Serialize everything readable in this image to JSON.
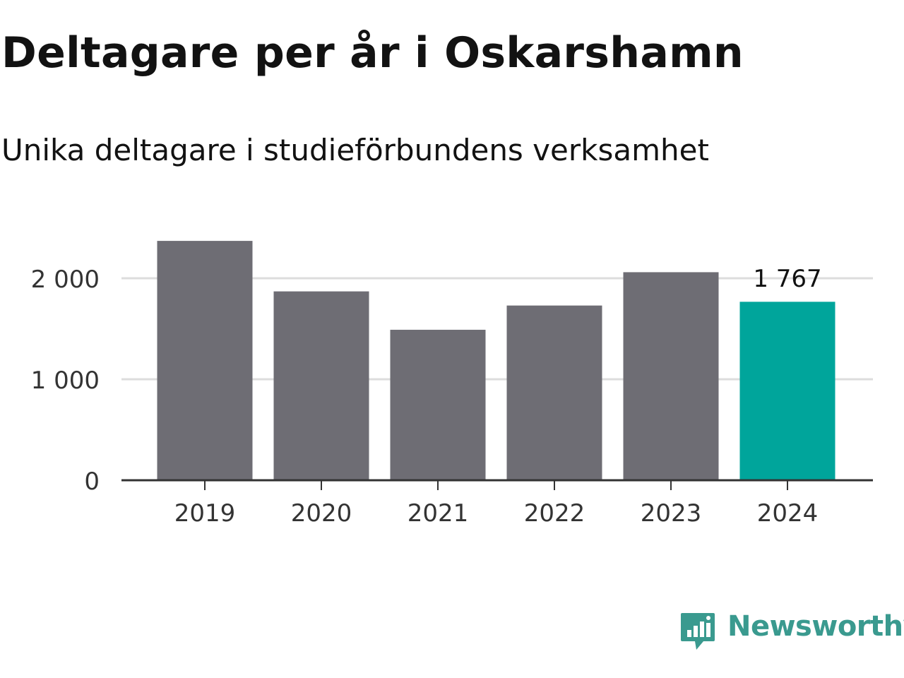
{
  "title": "Deltagare per år i Oskarshamn",
  "subtitle": "Unika deltagare i studieförbundens verksamhet",
  "brand": {
    "name": "Newsworthy",
    "icon": "newsworthy-logo-icon",
    "color": "#3a9a8f"
  },
  "chart_data": {
    "type": "bar",
    "categories": [
      "2019",
      "2020",
      "2021",
      "2022",
      "2023",
      "2024"
    ],
    "values": [
      2370,
      1870,
      1490,
      1730,
      2060,
      1767
    ],
    "ylim": [
      0,
      2500
    ],
    "y_ticks": [
      0,
      1000,
      2000
    ],
    "y_tick_labels": [
      "0",
      "1 000",
      "2 000"
    ],
    "grid": true,
    "bar_color": "#6e6d74",
    "highlight_color": "#00a59b",
    "highlight_index": 5,
    "annotation": {
      "index": 5,
      "text": "1 767"
    }
  }
}
